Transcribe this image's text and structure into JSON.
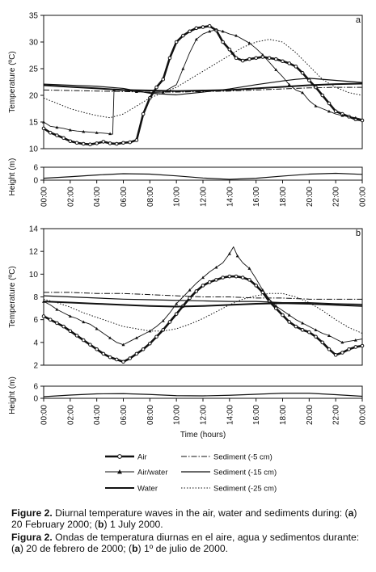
{
  "chart_data": [
    {
      "panel_label": "a",
      "type": "line",
      "xlabel": "",
      "ylabel": "Temperature (ºC)",
      "ylim": [
        10,
        35
      ],
      "yticks": [
        "10",
        "15",
        "20",
        "25",
        "30",
        "35"
      ],
      "height_ylabel": "Height (m)",
      "height_ylim": [
        0,
        6
      ],
      "height_yticks": [
        "0",
        "6"
      ],
      "xticks": [
        "00:00",
        "02:00",
        "04:00",
        "06:00",
        "08:00",
        "10:00",
        "12:00",
        "14:00",
        "16:00",
        "18:00",
        "20:00",
        "22:00",
        "00:00"
      ],
      "series": [
        {
          "name": "Air",
          "x": [
            0,
            0.5,
            1,
            1.5,
            2,
            2.5,
            3,
            3.5,
            4,
            4.5,
            5,
            5.5,
            6,
            6.5,
            7,
            7.5,
            8,
            8.5,
            9,
            9.5,
            10,
            10.5,
            11,
            11.5,
            12,
            12.5,
            13,
            13.5,
            14,
            14.5,
            15,
            15.5,
            16,
            16.5,
            17,
            17.5,
            18,
            18.5,
            19,
            19.5,
            20,
            20.5,
            21,
            21.5,
            22,
            22.5,
            23,
            23.5,
            24
          ],
          "values": [
            13.8,
            13.0,
            12.5,
            12.0,
            11.4,
            11.1,
            10.9,
            10.8,
            11.0,
            11.3,
            11.0,
            10.9,
            11.1,
            11.2,
            11.6,
            16.5,
            19.5,
            21.5,
            23.0,
            27.0,
            30.0,
            31.2,
            32.0,
            32.6,
            32.8,
            33.0,
            32.2,
            30.0,
            28.6,
            27.0,
            26.5,
            26.8,
            27.0,
            27.2,
            27.0,
            26.8,
            26.4,
            26.0,
            25.4,
            24.2,
            22.8,
            21.5,
            20.0,
            18.5,
            17.0,
            16.5,
            16.0,
            15.5,
            15.3
          ]
        },
        {
          "name": "Air/water",
          "x": [
            0,
            0.5,
            1,
            1.5,
            2,
            2.5,
            3,
            3.5,
            4,
            4.5,
            5,
            5.2,
            5.3,
            6,
            7,
            8,
            9,
            10,
            10.5,
            11,
            11.5,
            12,
            12.5,
            13,
            13.5,
            14,
            14.5,
            15,
            15.5,
            16,
            16.5,
            17,
            17.5,
            18,
            18.5,
            19,
            19.5,
            20,
            20.5,
            21,
            21.5,
            22,
            22.5,
            23,
            23.5,
            24
          ],
          "values": [
            15.0,
            14.2,
            14.0,
            13.8,
            13.5,
            13.3,
            13.2,
            13.1,
            13.0,
            12.9,
            12.8,
            12.7,
            21.0,
            20.9,
            20.7,
            20.5,
            20.6,
            22.0,
            25.0,
            28.0,
            30.5,
            31.5,
            32.0,
            32.3,
            32.0,
            31.5,
            31.2,
            30.5,
            29.8,
            28.8,
            27.6,
            26.2,
            24.8,
            23.5,
            22.0,
            21.0,
            20.5,
            19.0,
            18.0,
            17.5,
            17.0,
            16.5,
            16.2,
            16.0,
            15.8,
            15.5
          ]
        },
        {
          "name": "Water",
          "x": [
            0,
            2,
            4,
            6,
            8,
            10,
            12,
            14,
            16,
            18,
            20,
            22,
            24
          ],
          "values": [
            21.9,
            21.6,
            21.3,
            21.0,
            20.9,
            20.8,
            20.9,
            21.0,
            21.3,
            21.6,
            21.9,
            22.1,
            22.2
          ]
        },
        {
          "name": "Sediment (-5 cm)",
          "x": [
            0,
            2,
            4,
            6,
            8,
            10,
            12,
            14,
            16,
            18,
            20,
            22,
            24
          ],
          "values": [
            21.0,
            20.9,
            20.8,
            20.7,
            20.6,
            20.6,
            20.7,
            20.8,
            21.0,
            21.2,
            21.4,
            21.5,
            21.5
          ]
        },
        {
          "name": "Sediment (-15 cm)",
          "x": [
            0,
            2,
            4,
            6,
            8,
            10,
            12,
            14,
            16,
            18,
            19,
            20,
            22,
            24
          ],
          "values": [
            22.1,
            21.9,
            21.7,
            21.3,
            20.4,
            20.1,
            20.6,
            21.2,
            22.0,
            22.7,
            23.0,
            23.2,
            22.8,
            22.4
          ]
        },
        {
          "name": "Sediment (-25 cm)",
          "x": [
            0,
            1,
            2,
            3,
            4,
            5,
            6,
            7,
            8,
            9,
            10,
            11,
            12,
            13,
            14,
            15,
            16,
            17,
            18,
            19,
            20,
            21,
            22,
            23,
            24
          ],
          "values": [
            19.5,
            18.5,
            17.5,
            16.8,
            16.2,
            15.8,
            16.5,
            18.0,
            19.5,
            20.5,
            21.5,
            23.0,
            24.5,
            26.0,
            27.5,
            29.0,
            30.0,
            30.5,
            30.0,
            28.0,
            25.5,
            23.0,
            21.5,
            20.5,
            20.0
          ]
        }
      ],
      "height_series": {
        "x": [
          0,
          2,
          4,
          6,
          8,
          10,
          12,
          14,
          16,
          18,
          20,
          22,
          24
        ],
        "values": [
          0.9,
          1.6,
          2.4,
          3.0,
          2.8,
          2.0,
          1.0,
          0.4,
          0.9,
          1.9,
          2.8,
          3.2,
          2.7
        ]
      }
    },
    {
      "panel_label": "b",
      "type": "line",
      "xlabel": "Time (hours)",
      "ylabel": "Temperature (ºC)",
      "ylim": [
        2,
        14
      ],
      "yticks": [
        "2",
        "4",
        "6",
        "8",
        "10",
        "12",
        "14"
      ],
      "height_ylabel": "Height (m)",
      "height_ylim": [
        0,
        6
      ],
      "height_yticks": [
        "0",
        "6"
      ],
      "xticks": [
        "00:00",
        "02:00",
        "04:00",
        "06:00",
        "08:00",
        "10:00",
        "12:00",
        "14:00",
        "16:00",
        "18:00",
        "20:00",
        "22:00",
        "00:00"
      ],
      "series": [
        {
          "name": "Air",
          "x": [
            0,
            0.5,
            1,
            1.5,
            2,
            2.5,
            3,
            3.5,
            4,
            4.5,
            5,
            5.5,
            6,
            6.5,
            7,
            7.5,
            8,
            8.5,
            9,
            9.5,
            10,
            10.5,
            11,
            11.5,
            12,
            12.5,
            13,
            13.5,
            14,
            14.5,
            15,
            15.5,
            16,
            16.5,
            17,
            17.5,
            18,
            18.5,
            19,
            19.5,
            20,
            20.5,
            21,
            21.5,
            22,
            22.5,
            23,
            23.5,
            24
          ],
          "values": [
            6.3,
            6.0,
            5.7,
            5.4,
            5.0,
            4.6,
            4.2,
            3.8,
            3.4,
            3.0,
            2.7,
            2.5,
            2.3,
            2.6,
            3.0,
            3.4,
            3.9,
            4.5,
            5.1,
            5.8,
            6.5,
            7.2,
            7.9,
            8.5,
            9.0,
            9.3,
            9.5,
            9.7,
            9.8,
            9.8,
            9.7,
            9.5,
            9.0,
            8.4,
            7.6,
            7.0,
            6.4,
            5.8,
            5.4,
            5.1,
            4.9,
            4.5,
            4.0,
            3.4,
            2.9,
            3.1,
            3.4,
            3.6,
            3.7
          ]
        },
        {
          "name": "Air/water",
          "x": [
            0,
            0.5,
            1,
            1.5,
            2,
            2.5,
            3,
            3.5,
            4,
            4.5,
            5,
            5.5,
            6,
            6.5,
            7,
            7.5,
            8,
            8.5,
            9,
            9.5,
            10,
            10.5,
            11,
            11.5,
            12,
            12.5,
            13,
            13.5,
            14,
            14.3,
            14.6,
            15,
            15.5,
            16,
            16.5,
            17,
            17.5,
            18,
            18.5,
            19,
            19.5,
            20,
            20.5,
            21,
            21.5,
            22,
            22.5,
            23,
            23.5,
            24
          ],
          "values": [
            7.6,
            7.3,
            6.9,
            6.6,
            6.3,
            6.1,
            5.8,
            5.6,
            5.2,
            4.8,
            4.4,
            4.0,
            3.8,
            4.1,
            4.4,
            4.7,
            5.0,
            5.4,
            5.9,
            6.6,
            7.4,
            8.0,
            8.6,
            9.2,
            9.7,
            10.2,
            10.6,
            11.0,
            11.8,
            12.4,
            11.6,
            11.0,
            10.5,
            9.6,
            8.6,
            7.8,
            7.2,
            6.8,
            6.4,
            6.0,
            5.7,
            5.4,
            5.1,
            4.8,
            4.6,
            4.3,
            4.0,
            4.1,
            4.2,
            4.3
          ]
        },
        {
          "name": "Water",
          "x": [
            0,
            2,
            4,
            6,
            8,
            10,
            12,
            14,
            16,
            18,
            20,
            22,
            24
          ],
          "values": [
            7.6,
            7.5,
            7.4,
            7.3,
            7.2,
            7.15,
            7.2,
            7.3,
            7.4,
            7.45,
            7.4,
            7.3,
            7.2
          ]
        },
        {
          "name": "Sediment (-5 cm)",
          "x": [
            0,
            2,
            4,
            6,
            8,
            10,
            12,
            14,
            16,
            18,
            20,
            22,
            24
          ],
          "values": [
            8.4,
            8.4,
            8.3,
            8.3,
            8.2,
            8.1,
            8.0,
            8.0,
            7.9,
            7.9,
            7.8,
            7.8,
            7.8
          ]
        },
        {
          "name": "Sediment (-15 cm)",
          "x": [
            0,
            2,
            4,
            6,
            8,
            10,
            12,
            14,
            16,
            18,
            20,
            22,
            24
          ],
          "values": [
            8.1,
            8.0,
            7.9,
            7.8,
            7.75,
            7.7,
            7.65,
            7.6,
            7.6,
            7.5,
            7.5,
            7.4,
            7.35
          ]
        },
        {
          "name": "Sediment (-25 cm)",
          "x": [
            0,
            1,
            2,
            3,
            4,
            5,
            6,
            7,
            8,
            9,
            10,
            11,
            12,
            13,
            14,
            15,
            16,
            17,
            18,
            19,
            20,
            21,
            22,
            23,
            24
          ],
          "values": [
            7.8,
            7.5,
            7.1,
            6.6,
            6.2,
            5.8,
            5.4,
            5.2,
            5.0,
            5.0,
            5.2,
            5.6,
            6.1,
            6.7,
            7.3,
            7.8,
            8.1,
            8.3,
            8.3,
            8.0,
            7.5,
            6.8,
            6.0,
            5.3,
            4.8
          ]
        }
      ],
      "height_series": {
        "x": [
          0,
          2,
          4,
          6,
          8,
          10,
          12,
          14,
          16,
          18,
          20,
          22,
          24
        ],
        "values": [
          0.8,
          1.6,
          2.2,
          2.3,
          1.9,
          1.3,
          1.2,
          1.5,
          2.0,
          2.5,
          2.5,
          1.8,
          1.0
        ]
      }
    }
  ],
  "legend": {
    "items": [
      {
        "label": "Air",
        "style": "circles"
      },
      {
        "label": "Air/water",
        "style": "triangles"
      },
      {
        "label": "Water",
        "style": "thick"
      },
      {
        "label": "Sediment (-5 cm)",
        "style": "dashdot"
      },
      {
        "label": "Sediment (-15 cm)",
        "style": "solid"
      },
      {
        "label": "Sediment (-25 cm)",
        "style": "dotted"
      }
    ]
  },
  "caption": {
    "en_label": "Figure 2.",
    "en_text": " Diurnal temperature waves in the air, water and sediments during: (",
    "en_a": "a",
    "en_mid": ") 20 February 2000; (",
    "en_b": "b",
    "en_end": ") 1 July 2000.",
    "es_label": "Figura 2.",
    "es_text": " Ondas de temperatura diurnas en el aire, agua y sedimentos durante: (",
    "es_a": "a",
    "es_mid": ") 20 de febrero de 2000; (",
    "es_b": "b",
    "es_end": ") 1º de julio de 2000."
  },
  "colors": {
    "ink": "#111111",
    "light": "#666666"
  }
}
